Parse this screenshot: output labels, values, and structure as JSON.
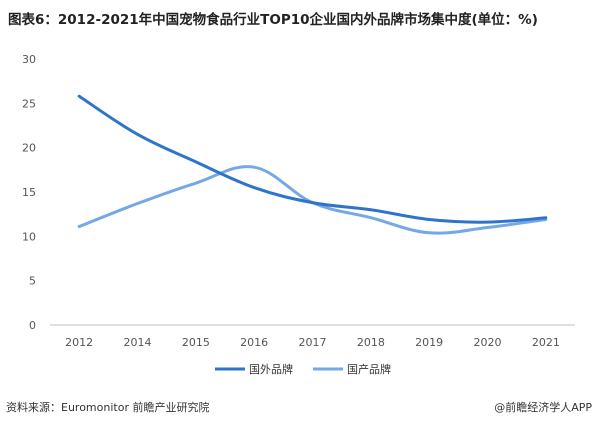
{
  "title": "图表6：2012-2021年中国宠物食品行业TOP10企业国内外品牌市场集中度(单位：%)",
  "source": "资料来源：Euromonitor 前瞻产业研究院",
  "credit": "@前瞻经济学人APP",
  "colors": {
    "foreign": "#2e75c9",
    "domestic": "#74a8e6",
    "axis": "#bfbfbf"
  },
  "chart_data": {
    "type": "line",
    "x": [
      "2012",
      "2014",
      "2015",
      "2016",
      "2017",
      "2018",
      "2019",
      "2020",
      "2021"
    ],
    "ylim": [
      0,
      30
    ],
    "yticks": [
      0,
      5,
      10,
      15,
      20,
      25,
      30
    ],
    "grid": false,
    "legend": "bottom",
    "series": [
      {
        "name": "国外品牌",
        "values": [
          25.8,
          21.5,
          18.4,
          15.5,
          13.8,
          13.0,
          11.9,
          11.6,
          12.1
        ]
      },
      {
        "name": "国产品牌",
        "values": [
          11.1,
          13.7,
          16.0,
          17.8,
          13.8,
          12.1,
          10.4,
          11.0,
          11.9
        ]
      }
    ]
  }
}
